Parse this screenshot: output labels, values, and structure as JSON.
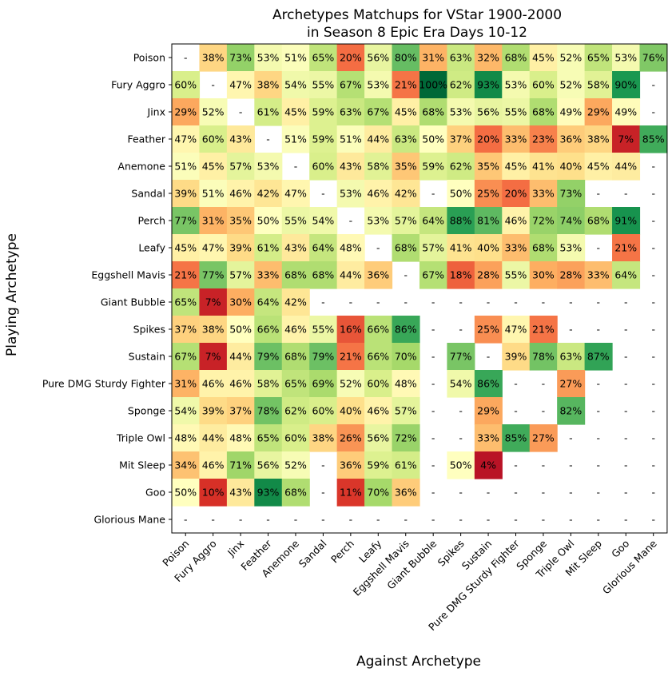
{
  "chart_data": {
    "type": "heatmap",
    "title": "Archetypes Matchups for VStar 1900-2000\nin Season 8 Epic Era Days 10-12",
    "xlabel": "Against Archetype",
    "ylabel": "Playing Archetype",
    "rows": [
      "Poison",
      "Fury Aggro",
      "Jinx",
      "Feather",
      "Anemone",
      "Sandal",
      "Perch",
      "Leafy",
      "Eggshell Mavis",
      "Giant Bubble",
      "Spikes",
      "Sustain",
      "Pure DMG Sturdy Fighter",
      "Sponge",
      "Triple Owl",
      "Mit Sleep",
      "Goo",
      "Glorious Mane"
    ],
    "columns": [
      "Poison",
      "Fury Aggro",
      "Jinx",
      "Feather",
      "Anemone",
      "Sandal",
      "Perch",
      "Leafy",
      "Eggshell Mavis",
      "Giant Bubble",
      "Spikes",
      "Sustain",
      "Pure DMG Sturdy Fighter",
      "Sponge",
      "Triple Owl",
      "Mit Sleep",
      "Goo",
      "Glorious Mane"
    ],
    "values": [
      [
        null,
        38,
        73,
        53,
        51,
        65,
        20,
        56,
        80,
        31,
        63,
        32,
        68,
        45,
        52,
        65,
        53,
        76
      ],
      [
        60,
        null,
        47,
        38,
        54,
        55,
        67,
        53,
        21,
        100,
        62,
        93,
        53,
        60,
        52,
        58,
        90,
        null
      ],
      [
        29,
        52,
        null,
        61,
        45,
        59,
        63,
        67,
        45,
        68,
        53,
        56,
        55,
        68,
        49,
        29,
        49,
        null
      ],
      [
        47,
        60,
        43,
        null,
        51,
        59,
        51,
        44,
        63,
        50,
        37,
        20,
        33,
        23,
        36,
        38,
        7,
        85
      ],
      [
        51,
        45,
        57,
        53,
        null,
        60,
        43,
        58,
        35,
        59,
        62,
        35,
        45,
        41,
        40,
        45,
        44,
        null
      ],
      [
        39,
        51,
        46,
        42,
        47,
        null,
        53,
        46,
        42,
        null,
        50,
        25,
        20,
        33,
        73,
        null,
        null,
        null
      ],
      [
        77,
        31,
        35,
        50,
        55,
        54,
        null,
        53,
        57,
        64,
        88,
        81,
        46,
        72,
        74,
        68,
        91,
        null
      ],
      [
        45,
        47,
        39,
        61,
        43,
        64,
        48,
        null,
        68,
        57,
        41,
        40,
        33,
        68,
        53,
        null,
        21,
        null
      ],
      [
        21,
        77,
        57,
        33,
        68,
        68,
        44,
        36,
        null,
        67,
        18,
        28,
        55,
        30,
        28,
        33,
        64,
        null
      ],
      [
        65,
        7,
        30,
        64,
        42,
        null,
        null,
        null,
        null,
        null,
        null,
        null,
        null,
        null,
        null,
        null,
        null,
        null
      ],
      [
        37,
        38,
        50,
        66,
        46,
        55,
        16,
        66,
        86,
        null,
        null,
        25,
        47,
        21,
        null,
        null,
        null,
        null
      ],
      [
        67,
        7,
        44,
        79,
        68,
        79,
        21,
        66,
        70,
        null,
        77,
        null,
        39,
        78,
        63,
        87,
        null,
        null
      ],
      [
        31,
        46,
        46,
        58,
        65,
        69,
        52,
        60,
        48,
        null,
        54,
        86,
        null,
        null,
        27,
        null,
        null,
        null
      ],
      [
        54,
        39,
        37,
        78,
        62,
        60,
        40,
        46,
        57,
        null,
        null,
        29,
        null,
        null,
        82,
        null,
        null,
        null
      ],
      [
        48,
        44,
        48,
        65,
        60,
        38,
        26,
        56,
        72,
        null,
        null,
        33,
        85,
        27,
        null,
        null,
        null,
        null
      ],
      [
        34,
        46,
        71,
        56,
        52,
        null,
        36,
        59,
        61,
        null,
        50,
        4,
        null,
        null,
        null,
        null,
        null,
        null
      ],
      [
        50,
        10,
        43,
        93,
        68,
        null,
        11,
        70,
        36,
        null,
        null,
        null,
        null,
        null,
        null,
        null,
        null,
        null
      ],
      [
        null,
        null,
        null,
        null,
        null,
        null,
        null,
        null,
        null,
        null,
        null,
        null,
        null,
        null,
        null,
        null,
        null,
        null
      ]
    ],
    "empty_marker": "-",
    "value_suffix": "%",
    "colormap": "RdYlGn",
    "vmin": 0,
    "vmax": 100,
    "grid": false,
    "legend": "none"
  }
}
